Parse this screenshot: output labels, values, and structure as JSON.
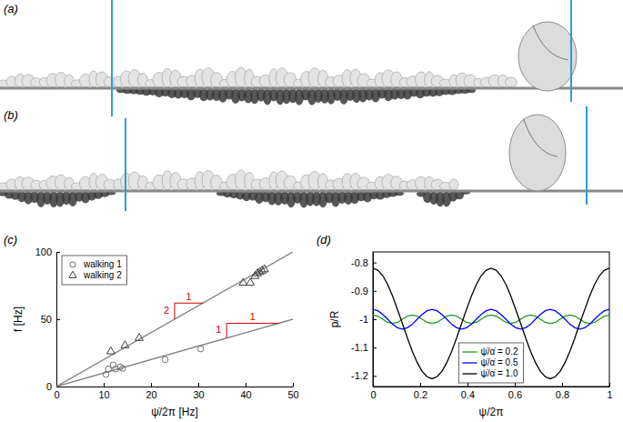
{
  "photos": [
    {
      "label": "(a)"
    },
    {
      "label": "(b)"
    }
  ],
  "chart_data": [
    {
      "type": "scatter",
      "title": "(c)",
      "x_label": "ψ̇/2π [Hz]",
      "y_label": "f [Hz]",
      "xlim": [
        0,
        50
      ],
      "ylim": [
        0,
        100
      ],
      "xticks": [
        0,
        10,
        20,
        30,
        40,
        50
      ],
      "yticks": [
        0,
        50,
        100
      ],
      "legend": "top-left",
      "series": [
        {
          "type": "line",
          "line_style": "solid",
          "color": "#808080",
          "x": [
            0,
            50
          ],
          "values": [
            0,
            100
          ]
        },
        {
          "type": "line",
          "line_style": "solid",
          "color": "#808080",
          "x": [
            0,
            50
          ],
          "values": [
            0,
            50
          ]
        },
        {
          "name": "walking 1",
          "type": "scatter",
          "marker": "circle",
          "color": "#707070",
          "x": [
            10.5,
            11,
            12,
            12.5,
            13.5,
            14,
            23,
            30.5
          ],
          "values": [
            9,
            13,
            16,
            13,
            14.5,
            13.5,
            20,
            28
          ]
        },
        {
          "name": "walking 2",
          "type": "scatter",
          "marker": "triangle",
          "color": "#404040",
          "x": [
            11.5,
            14.5,
            17.5,
            39.5,
            41,
            42,
            42.5,
            43,
            43.5,
            44
          ],
          "values": [
            26,
            30.5,
            36,
            77,
            77,
            82,
            84,
            85,
            86,
            87
          ]
        }
      ],
      "annotations": [
        {
          "x": [
            25,
            25,
            31
          ],
          "y": [
            50,
            62,
            62
          ],
          "color": "#cc0000",
          "labels": [
            {
              "text": "1",
              "x": 28,
              "y": 66
            },
            {
              "text": "2",
              "x": 23.3,
              "y": 56
            }
          ]
        },
        {
          "x": [
            36,
            36,
            47
          ],
          "y": [
            36,
            47,
            47
          ],
          "color": "#cc0000",
          "labels": [
            {
              "text": "1",
              "x": 41.5,
              "y": 51
            },
            {
              "text": "1",
              "x": 34.3,
              "y": 41.5
            }
          ]
        }
      ]
    },
    {
      "type": "line",
      "title": "(d)",
      "x_label": "ψ/2π",
      "y_label": "p/R",
      "xlim": [
        0,
        1
      ],
      "ylim": [
        -1.2375,
        -0.7625
      ],
      "xticks": [
        0,
        0.2,
        0.4,
        0.6,
        0.8,
        1
      ],
      "yticks": [
        -1.2,
        -1.1,
        -1,
        -0.9,
        -0.8
      ],
      "legend": "bottom",
      "x": [
        0,
        0.0208,
        0.0417,
        0.0625,
        0.0833,
        0.1042,
        0.125,
        0.1458,
        0.1667,
        0.1875,
        0.2083,
        0.2292,
        0.25,
        0.2708,
        0.2917,
        0.3125,
        0.3333,
        0.3542,
        0.375,
        0.3958,
        0.4167,
        0.4375,
        0.4583,
        0.4792,
        0.5,
        0.5208,
        0.5417,
        0.5625,
        0.5833,
        0.6042,
        0.625,
        0.6458,
        0.6667,
        0.6875,
        0.7083,
        0.7292,
        0.75,
        0.7708,
        0.7917,
        0.8125,
        0.8333,
        0.8542,
        0.875,
        0.8958,
        0.9167,
        0.9375,
        0.9583,
        0.9792,
        1
      ],
      "series": [
        {
          "name": "ψ̇/α̇ = 0.2",
          "color": "#1a9a1a",
          "values": [
            -0.985,
            -0.989,
            -1,
            -1.011,
            -1.015,
            -1.011,
            -1,
            -0.989,
            -0.985,
            -0.989,
            -1,
            -1.011,
            -1.015,
            -1.011,
            -1,
            -0.989,
            -0.985,
            -0.989,
            -1,
            -1.011,
            -1.015,
            -1.011,
            -1,
            -0.989,
            -0.985,
            -0.989,
            -1,
            -1.011,
            -1.015,
            -1.011,
            -1,
            -0.989,
            -0.985,
            -0.989,
            -1,
            -1.011,
            -1.015,
            -1.011,
            -1,
            -0.989,
            -0.985,
            -0.989,
            -1,
            -1.011,
            -1.015,
            -1.011,
            -1,
            -0.989,
            -0.985
          ]
        },
        {
          "name": "ψ̇/α̇ = 0.5",
          "color": "#0000ff",
          "values": [
            -0.965,
            -0.97,
            -0.983,
            -1,
            -1.018,
            -1.03,
            -1.035,
            -1.03,
            -1.018,
            -1,
            -0.983,
            -0.97,
            -0.965,
            -0.97,
            -0.983,
            -1,
            -1.018,
            -1.03,
            -1.035,
            -1.03,
            -1.018,
            -1,
            -0.983,
            -0.97,
            -0.965,
            -0.97,
            -0.983,
            -1,
            -1.018,
            -1.03,
            -1.035,
            -1.03,
            -1.018,
            -1,
            -0.983,
            -0.97,
            -0.965,
            -0.97,
            -0.983,
            -1,
            -1.018,
            -1.03,
            -1.035,
            -1.03,
            -1.018,
            -1,
            -0.983,
            -0.97,
            -0.965
          ]
        },
        {
          "name": "ψ̇/α̇ = 1.0",
          "color": "#000000",
          "values": [
            -0.82,
            -0.827,
            -0.846,
            -0.877,
            -0.918,
            -0.966,
            -1.015,
            -1.066,
            -1.113,
            -1.153,
            -1.184,
            -1.203,
            -1.21,
            -1.203,
            -1.184,
            -1.153,
            -1.113,
            -1.066,
            -1.015,
            -0.966,
            -0.918,
            -0.877,
            -0.846,
            -0.827,
            -0.82,
            -0.827,
            -0.846,
            -0.877,
            -0.918,
            -0.966,
            -1.015,
            -1.066,
            -1.113,
            -1.153,
            -1.184,
            -1.203,
            -1.21,
            -1.203,
            -1.184,
            -1.153,
            -1.113,
            -1.066,
            -1.015,
            -0.966,
            -0.918,
            -0.877,
            -0.846,
            -0.827,
            -0.82
          ]
        }
      ]
    }
  ]
}
